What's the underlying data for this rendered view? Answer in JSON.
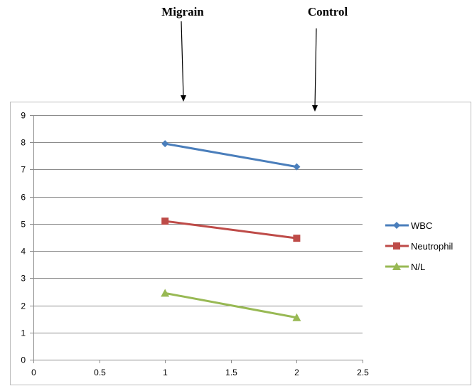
{
  "chart_data": {
    "type": "line",
    "title": "",
    "xlabel": "",
    "ylabel": "",
    "xlim": [
      0,
      2.5
    ],
    "ylim": [
      0,
      9
    ],
    "xticks": [
      "0",
      "0.5",
      "1",
      "1.5",
      "2",
      "2.5"
    ],
    "yticks": [
      "0",
      "1",
      "2",
      "3",
      "4",
      "5",
      "6",
      "7",
      "8",
      "9"
    ],
    "grid": "horizontal",
    "legend": "right",
    "series": [
      {
        "name": "WBC",
        "color": "#4a7ebb",
        "marker": "diamond",
        "points": [
          {
            "x": 1,
            "y": 7.95
          },
          {
            "x": 2,
            "y": 7.1
          }
        ]
      },
      {
        "name": "Neutrophil",
        "color": "#be4b48",
        "marker": "square",
        "points": [
          {
            "x": 1,
            "y": 5.1
          },
          {
            "x": 2,
            "y": 4.47
          }
        ]
      },
      {
        "name": "N/L",
        "color": "#98b954",
        "marker": "triangle",
        "points": [
          {
            "x": 1,
            "y": 2.45
          },
          {
            "x": 2,
            "y": 1.55
          }
        ]
      }
    ],
    "annotations": [
      {
        "text": "Migrain",
        "points_to_x": 1.13
      },
      {
        "text": "Control",
        "points_to_x": 2.14
      }
    ]
  }
}
